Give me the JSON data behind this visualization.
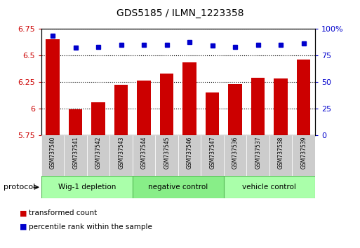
{
  "title": "GDS5185 / ILMN_1223358",
  "samples": [
    "GSM737540",
    "GSM737541",
    "GSM737542",
    "GSM737543",
    "GSM737544",
    "GSM737545",
    "GSM737546",
    "GSM737547",
    "GSM737536",
    "GSM737537",
    "GSM737538",
    "GSM737539"
  ],
  "red_values": [
    6.65,
    5.99,
    6.06,
    6.22,
    6.26,
    6.33,
    6.43,
    6.15,
    6.23,
    6.29,
    6.28,
    6.46
  ],
  "blue_values": [
    93,
    82,
    83,
    85,
    85,
    85,
    87,
    84,
    83,
    85,
    85,
    86
  ],
  "ylim_left": [
    5.75,
    6.75
  ],
  "ylim_right": [
    0,
    100
  ],
  "yticks_left": [
    5.75,
    6.0,
    6.25,
    6.5,
    6.75
  ],
  "yticks_right": [
    0,
    25,
    50,
    75,
    100
  ],
  "ytick_labels_left": [
    "5.75",
    "6",
    "6.25",
    "6.5",
    "6.75"
  ],
  "ytick_labels_right": [
    "0",
    "25",
    "50",
    "75",
    "100%"
  ],
  "groups": [
    {
      "label": "Wig-1 depletion",
      "start": 0,
      "end": 3
    },
    {
      "label": "negative control",
      "start": 4,
      "end": 7
    },
    {
      "label": "vehicle control",
      "start": 8,
      "end": 11
    }
  ],
  "group_colors": [
    "#aaffaa",
    "#88ee88",
    "#aaffaa"
  ],
  "bar_color": "#cc0000",
  "dot_color": "#0000cc",
  "bg_color": "#ffffff",
  "tick_label_color_left": "#cc0000",
  "tick_label_color_right": "#0000cc",
  "legend_red_label": "transformed count",
  "legend_blue_label": "percentile rank within the sample",
  "protocol_label": "protocol",
  "sample_bg_color": "#cccccc",
  "bar_width": 0.6
}
